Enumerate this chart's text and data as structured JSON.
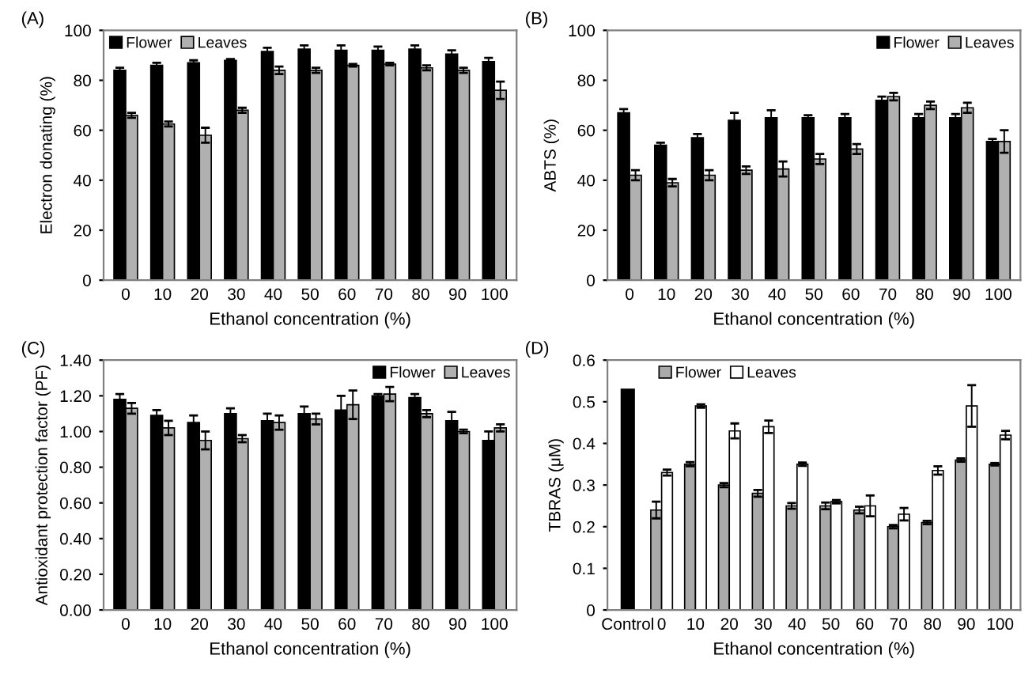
{
  "chart_data": [
    {
      "type": "bar",
      "title": "(A)",
      "xlabel": "Ethanol concentration (%)",
      "ylabel": "Electron donating (%)",
      "categories": [
        "0",
        "10",
        "20",
        "30",
        "40",
        "50",
        "60",
        "70",
        "80",
        "90",
        "100"
      ],
      "ylim": [
        0,
        100
      ],
      "yticks": [
        0,
        20,
        40,
        60,
        80,
        100
      ],
      "grid": false,
      "legend": "top left",
      "series": [
        {
          "name": "Flower",
          "color": "#000000",
          "values": [
            84,
            86,
            87,
            88,
            91.5,
            92.5,
            92,
            92,
            92.5,
            90.5,
            87.5
          ],
          "errors": [
            1,
            1,
            1,
            0.5,
            1.5,
            1.5,
            2,
            1.5,
            1.5,
            1.5,
            1.5
          ]
        },
        {
          "name": "Leaves",
          "color": "#b0b0b0",
          "values": [
            66,
            62.5,
            58,
            68,
            84,
            84,
            86,
            86.5,
            85,
            84,
            76
          ],
          "errors": [
            1,
            1,
            3,
            1,
            1.5,
            1,
            0.5,
            0.5,
            1,
            1,
            3.5
          ]
        }
      ]
    },
    {
      "type": "bar",
      "title": "(B)",
      "xlabel": "Ethanol concentration (%)",
      "ylabel": "ABTS (%)",
      "categories": [
        "0",
        "10",
        "20",
        "30",
        "40",
        "50",
        "60",
        "70",
        "80",
        "90",
        "100"
      ],
      "ylim": [
        0,
        100
      ],
      "yticks": [
        0,
        20,
        40,
        60,
        80,
        100
      ],
      "grid": false,
      "legend": "top right",
      "series": [
        {
          "name": "Flower",
          "color": "#000000",
          "values": [
            67,
            54,
            57,
            64,
            65,
            65,
            65,
            72,
            65,
            65,
            55.5
          ],
          "errors": [
            1.5,
            1,
            1.5,
            3,
            3,
            1,
            1.5,
            1.5,
            1.5,
            1.5,
            1
          ]
        },
        {
          "name": "Leaves",
          "color": "#b0b0b0",
          "values": [
            42,
            39,
            42,
            44,
            44.5,
            48.5,
            52.5,
            73.5,
            70,
            69,
            55.5
          ],
          "errors": [
            2,
            1.5,
            2,
            1.5,
            3,
            2,
            2,
            1.5,
            1.5,
            2,
            4.5
          ]
        }
      ]
    },
    {
      "type": "bar",
      "title": "(C)",
      "xlabel": "Ethanol concentration (%)",
      "ylabel": "Antioxidant protection factor (PF)",
      "categories": [
        "0",
        "10",
        "20",
        "30",
        "40",
        "50",
        "60",
        "70",
        "80",
        "90",
        "100"
      ],
      "ylim": [
        0,
        1.4
      ],
      "yticks": [
        {
          "value": 0,
          "label": "0.00"
        },
        {
          "value": 0.2,
          "label": "0.20"
        },
        {
          "value": 0.4,
          "label": "0.40"
        },
        {
          "value": 0.6,
          "label": "0.60"
        },
        {
          "value": 0.8,
          "label": "0.80"
        },
        {
          "value": 1.0,
          "label": "1.00"
        },
        {
          "value": 1.2,
          "label": "1.20"
        },
        {
          "value": 1.4,
          "label": "1.40"
        }
      ],
      "grid": false,
      "legend": "top right",
      "series": [
        {
          "name": "Flower",
          "color": "#000000",
          "values": [
            1.18,
            1.09,
            1.05,
            1.1,
            1.06,
            1.1,
            1.12,
            1.2,
            1.19,
            1.06,
            0.95
          ],
          "errors": [
            0.03,
            0.03,
            0.04,
            0.03,
            0.04,
            0.04,
            0.08,
            0.01,
            0.02,
            0.05,
            0.05
          ]
        },
        {
          "name": "Leaves",
          "color": "#b0b0b0",
          "values": [
            1.13,
            1.02,
            0.95,
            0.96,
            1.05,
            1.07,
            1.15,
            1.21,
            1.1,
            1.0,
            1.02
          ],
          "errors": [
            0.03,
            0.04,
            0.05,
            0.02,
            0.04,
            0.03,
            0.08,
            0.04,
            0.02,
            0.01,
            0.02
          ]
        }
      ]
    },
    {
      "type": "bar",
      "title": "(D)",
      "xlabel": "Ethanol concentration (%)",
      "ylabel": "TBRAS (μM)",
      "categories": [
        "Control",
        "0",
        "10",
        "20",
        "30",
        "40",
        "50",
        "60",
        "70",
        "80",
        "90",
        "100"
      ],
      "ylim": [
        0,
        0.6
      ],
      "yticks": [
        0,
        0.1,
        0.2,
        0.3,
        0.4,
        0.5,
        0.6
      ],
      "grid": false,
      "legend": "top left",
      "series": [
        {
          "color": "#000000",
          "values": [
            0.53,
            null,
            null,
            null,
            null,
            null,
            null,
            null,
            null,
            null,
            null,
            null
          ]
        },
        {
          "name": "Flower",
          "color": "#aaaaaa",
          "values": [
            null,
            0.24,
            0.35,
            0.3,
            0.28,
            0.25,
            0.25,
            0.24,
            0.2,
            0.21,
            0.36,
            0.35
          ],
          "errors": [
            null,
            0.02,
            0.005,
            0.005,
            0.008,
            0.007,
            0.008,
            0.008,
            0.004,
            0.004,
            0.004,
            0.003
          ]
        },
        {
          "name": "Leaves",
          "color": "#ffffff",
          "values": [
            null,
            0.33,
            0.49,
            0.43,
            0.44,
            0.35,
            0.26,
            0.25,
            0.23,
            0.335,
            0.49,
            0.42
          ],
          "errors": [
            null,
            0.007,
            0.004,
            0.018,
            0.015,
            0.004,
            0.004,
            0.025,
            0.015,
            0.01,
            0.05,
            0.01
          ]
        }
      ]
    }
  ]
}
